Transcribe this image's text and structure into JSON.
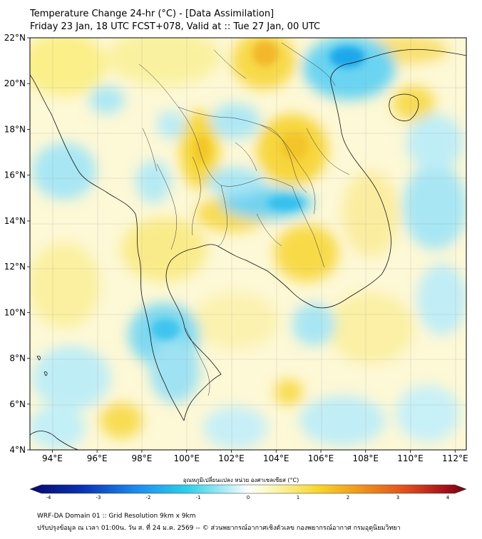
{
  "header": {
    "title_line1": "Temperature Change 24-hr (°C) - [Data Assimilation]",
    "title_line2": "Friday 23 Jan, 18 UTC FCST+078, Valid at :: Tue 27 Jan, 00 UTC"
  },
  "axes": {
    "lat_labels": [
      "22°N",
      "20°N",
      "18°N",
      "16°N",
      "14°N",
      "12°N",
      "10°N",
      "8°N",
      "6°N",
      "4°N"
    ],
    "lon_labels": [
      "94°E",
      "96°E",
      "98°E",
      "100°E",
      "102°E",
      "104°E",
      "106°E",
      "108°E",
      "110°E",
      "112°E"
    ],
    "lat_range": [
      4,
      22
    ],
    "lon_range": [
      93,
      112.5
    ]
  },
  "colorbar": {
    "title": "อุณหภูมิเปลี่ยนแปลง หน่วย องศาเซลเซียส (°C)",
    "ticks": [
      "-4",
      "-3",
      "-2",
      "-1",
      "0",
      "1",
      "2",
      "3",
      "4"
    ],
    "range": [
      -4,
      4
    ],
    "colors": [
      "#08086b",
      "#0a32b4",
      "#1f8ff0",
      "#2ccfea",
      "#8de6f2",
      "#ffffff",
      "#fbf5a0",
      "#f7d62a",
      "#f29a1a",
      "#e0501e",
      "#a8101a",
      "#6a0810"
    ]
  },
  "footer": {
    "line1": "WRF-DA Domain 01 :: Grid Resolution 9km x 9km",
    "line2": "ปรับปรุงข้อมูล ณ เวลา 01:00น. วัน ส. ที่ 24 ม.ค. 2569 -- © ส่วนพยากรณ์อากาศเชิงตัวเลข กองพยากรณ์อากาศ กรมอุตุนิยมวิทยา"
  }
}
